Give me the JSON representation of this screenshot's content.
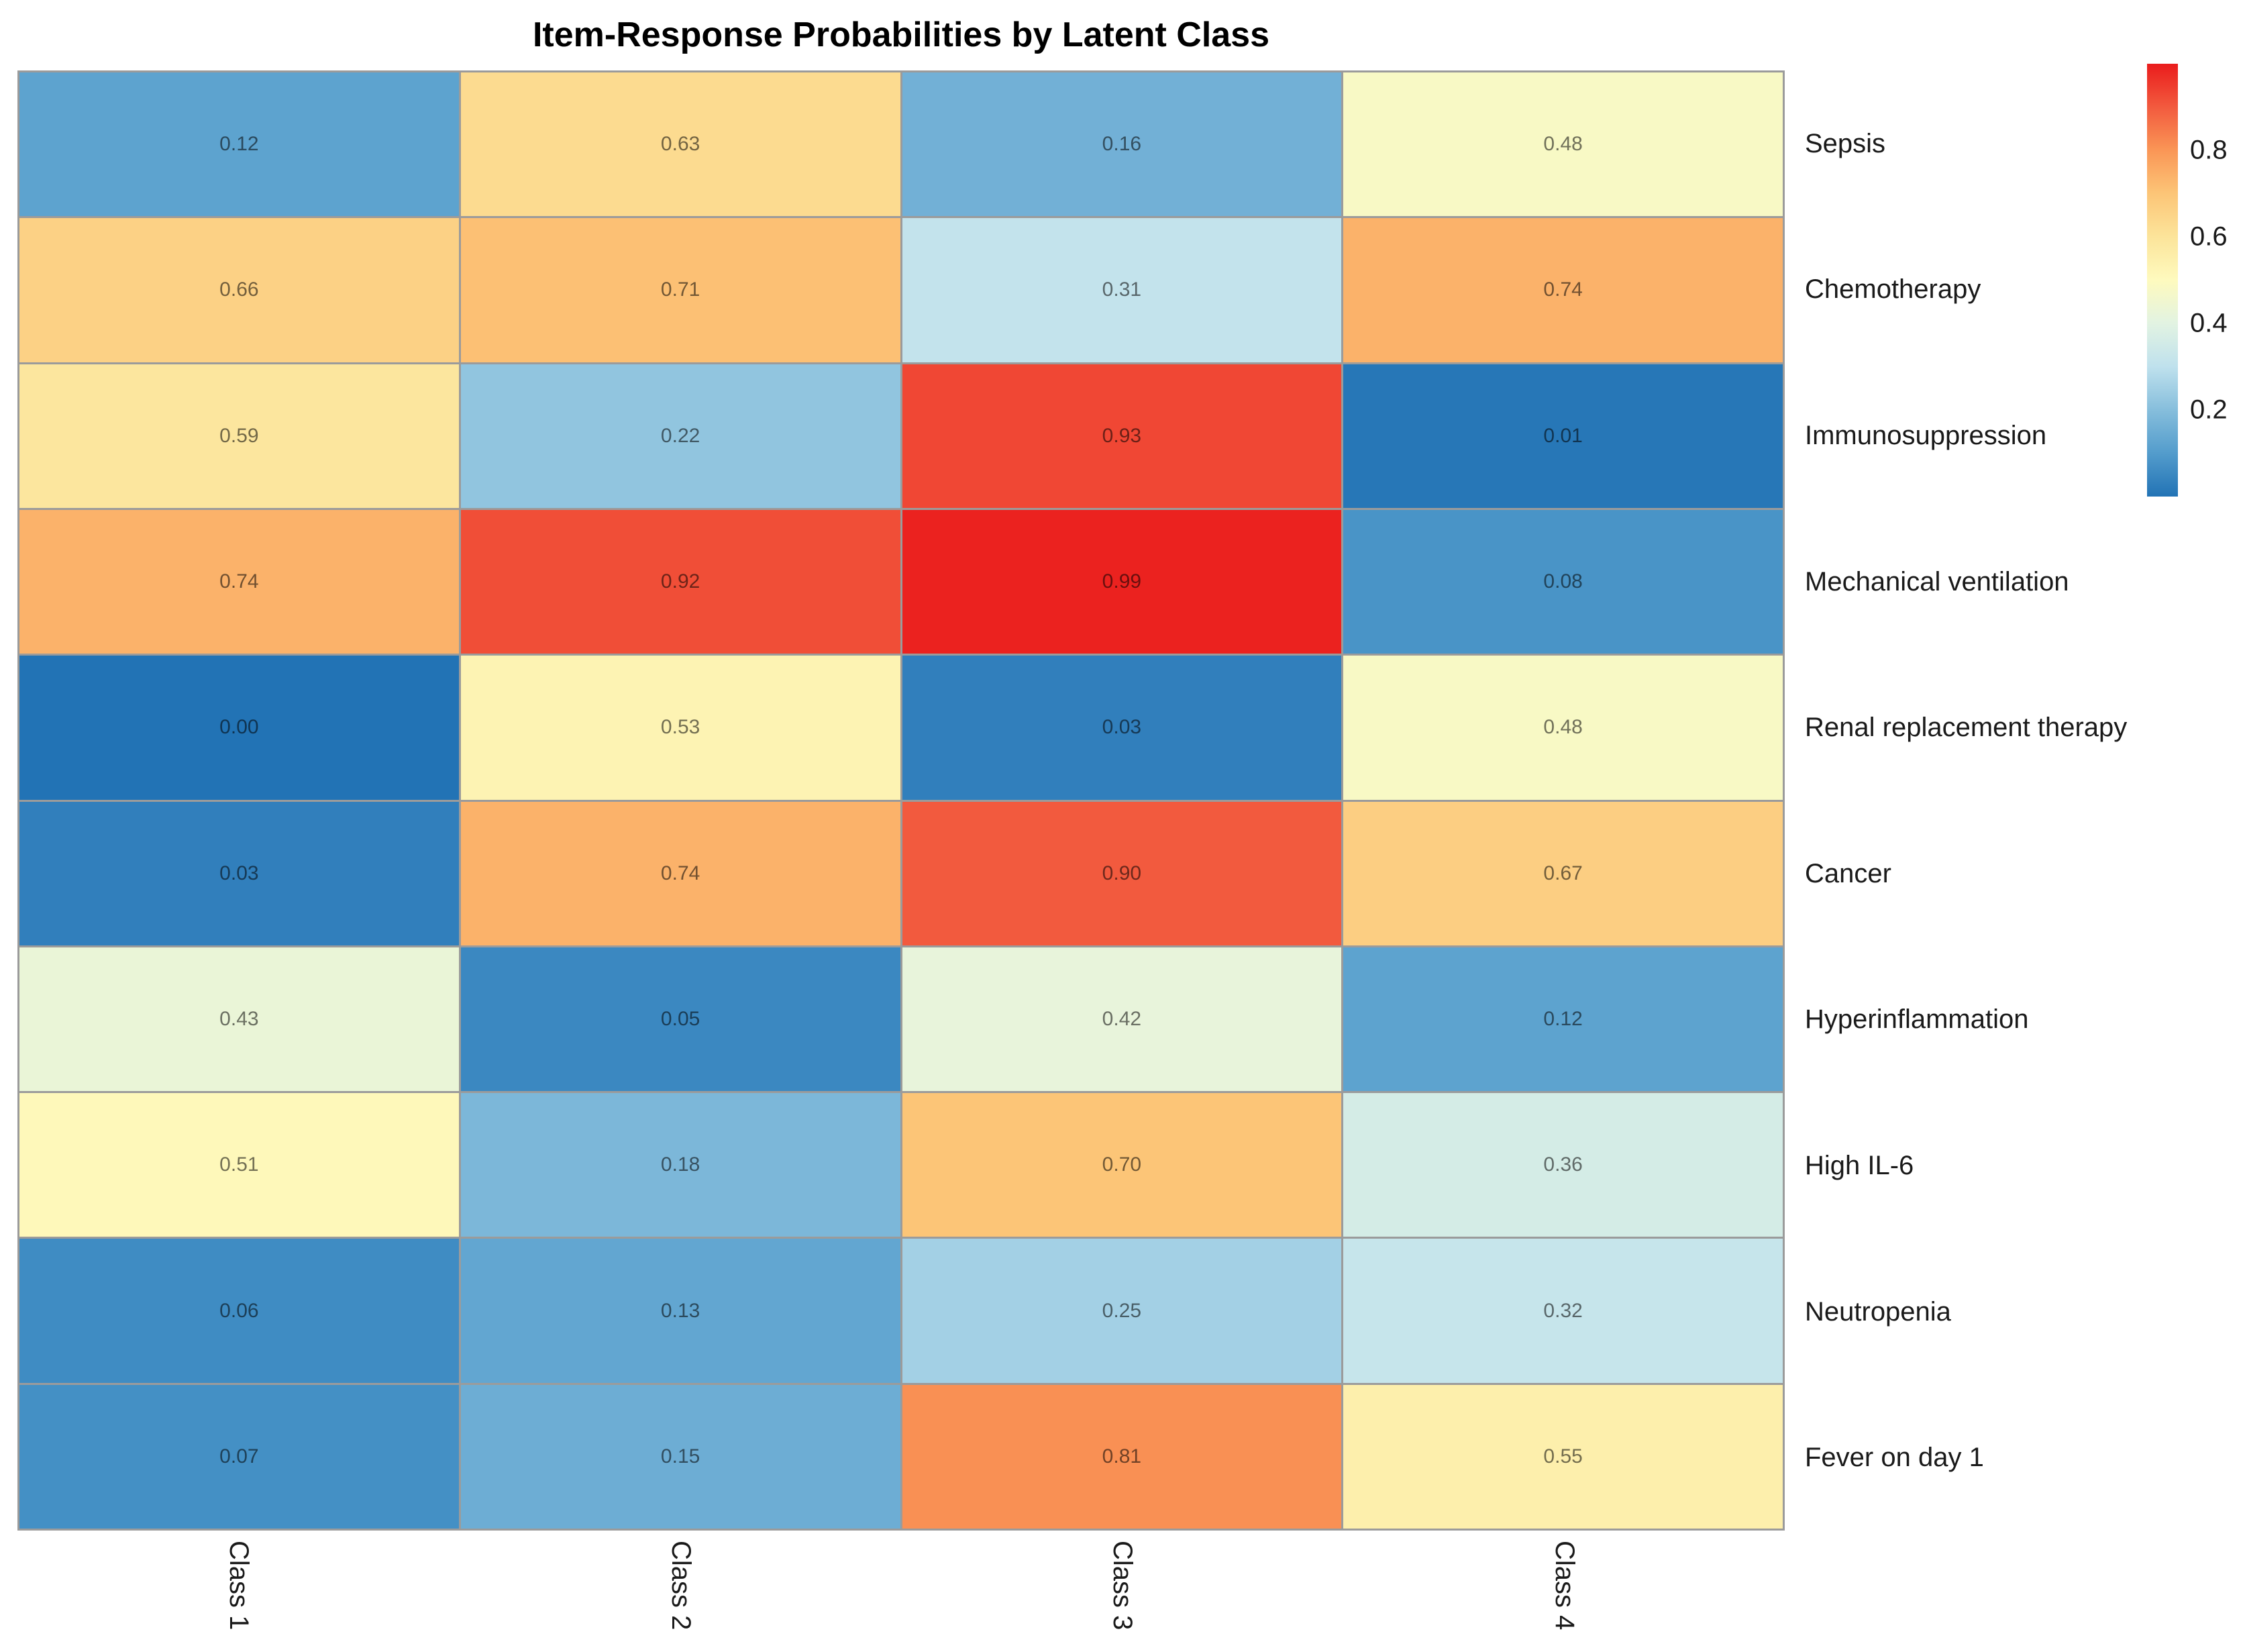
{
  "chart_data": {
    "type": "heatmap",
    "title": "Item-Response Probabilities by Latent Class",
    "rows": [
      "Sepsis",
      "Chemotherapy",
      "Immunosuppression",
      "Mechanical ventilation",
      "Renal replacement therapy",
      "Cancer",
      "Hyperinflammation",
      "High IL-6",
      "Neutropenia",
      "Fever on day 1"
    ],
    "columns": [
      "Class 1",
      "Class 2",
      "Class 3",
      "Class 4"
    ],
    "values": [
      [
        0.12,
        0.63,
        0.16,
        0.48
      ],
      [
        0.66,
        0.71,
        0.31,
        0.74
      ],
      [
        0.59,
        0.22,
        0.93,
        0.01
      ],
      [
        0.74,
        0.92,
        0.99,
        0.08
      ],
      [
        0.0,
        0.53,
        0.03,
        0.48
      ],
      [
        0.03,
        0.74,
        0.9,
        0.67
      ],
      [
        0.43,
        0.05,
        0.42,
        0.12
      ],
      [
        0.51,
        0.18,
        0.7,
        0.36
      ],
      [
        0.06,
        0.13,
        0.25,
        0.32
      ],
      [
        0.07,
        0.15,
        0.81,
        0.55
      ]
    ],
    "value_decimals": 2,
    "xlabel": "",
    "ylabel": "",
    "x_tick_rotation": 90,
    "grid": "cell-borders",
    "legend_position": "right",
    "colorbar": {
      "min": 0,
      "max": 1,
      "ticks": [
        {
          "label": "0.8",
          "value": 0.8
        },
        {
          "label": "0.6",
          "value": 0.6
        },
        {
          "label": "0.4",
          "value": 0.4
        },
        {
          "label": "0.2",
          "value": 0.2
        }
      ]
    },
    "colormap": {
      "name": "red-yellow-blue-reversed",
      "stops": [
        "#2273B5",
        "#539CCC",
        "#86BEDC",
        "#BFE1ED",
        "#E2F3E2",
        "#FEFABE",
        "#FCE49A",
        "#FCC577",
        "#FA9656",
        "#F25A3E",
        "#EA1C1C"
      ]
    },
    "grid_line_color": "#9b9b9b",
    "cell_text_color": "rgba(0,0,0,0.55)"
  }
}
